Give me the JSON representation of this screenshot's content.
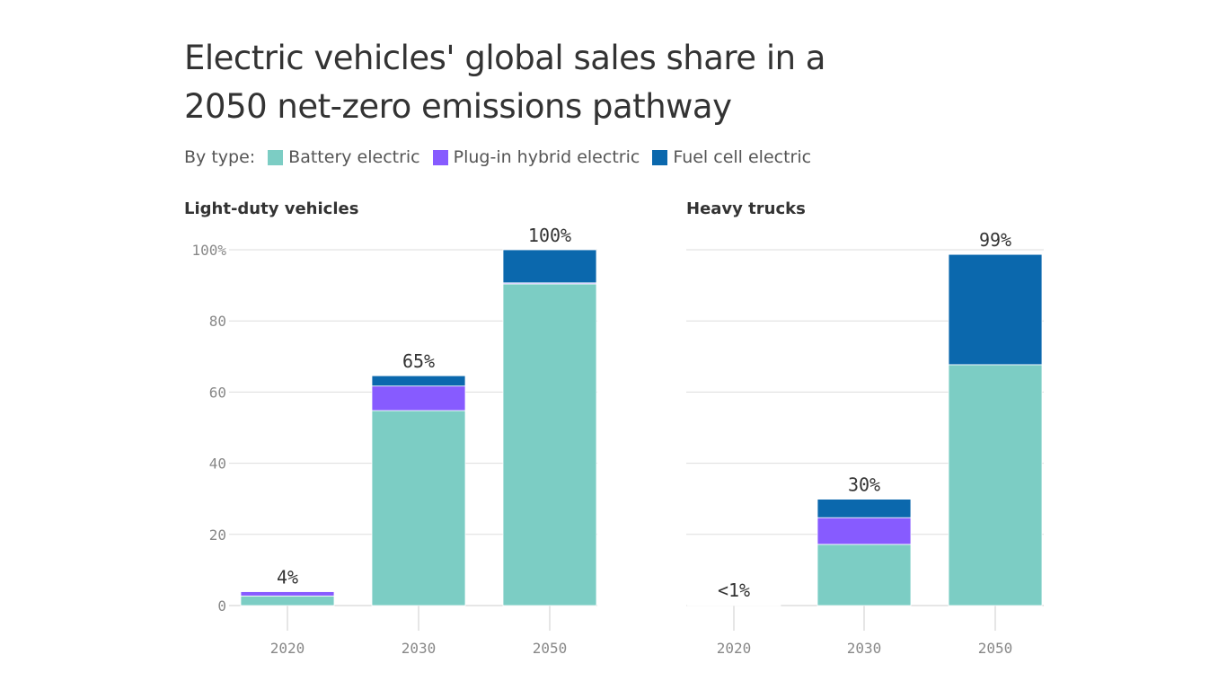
{
  "title": "Electric vehicles' global sales share in a 2050 net-zero emissions pathway",
  "legend": {
    "prefix": "By type:",
    "items": [
      {
        "label": "Battery electric",
        "color": "#7ccdc4"
      },
      {
        "label": "Plug-in hybrid electric",
        "color": "#875bff"
      },
      {
        "label": "Fuel cell electric",
        "color": "#0b68ad"
      }
    ]
  },
  "chart_data": [
    {
      "type": "bar",
      "stacked": true,
      "title": "Light-duty vehicles",
      "categories": [
        "2020",
        "2030",
        "2050"
      ],
      "series": [
        {
          "name": "Battery electric",
          "values": [
            2.7,
            54.8,
            90.4
          ]
        },
        {
          "name": "Plug-in hybrid electric",
          "values": [
            1.2,
            6.9,
            0.3
          ]
        },
        {
          "name": "Fuel cell electric",
          "values": [
            0,
            2.9,
            9.3
          ]
        }
      ],
      "data_labels": [
        "4%",
        "65%",
        "100%"
      ],
      "ylim": [
        0,
        100
      ],
      "yticks": [
        "0",
        "20",
        "40",
        "60",
        "80",
        "100%"
      ],
      "grid": true
    },
    {
      "type": "bar",
      "stacked": true,
      "title": "Heavy trucks",
      "categories": [
        "2020",
        "2030",
        "2050"
      ],
      "series": [
        {
          "name": "Battery electric",
          "values": [
            0.2,
            17.2,
            67.7
          ]
        },
        {
          "name": "Plug-in hybrid electric",
          "values": [
            0,
            7.5,
            0
          ]
        },
        {
          "name": "Fuel cell electric",
          "values": [
            0,
            5.2,
            31.0
          ]
        }
      ],
      "data_labels": [
        "<1%",
        "30%",
        "99%"
      ],
      "ylim": [
        0,
        100
      ],
      "grid": true
    }
  ]
}
